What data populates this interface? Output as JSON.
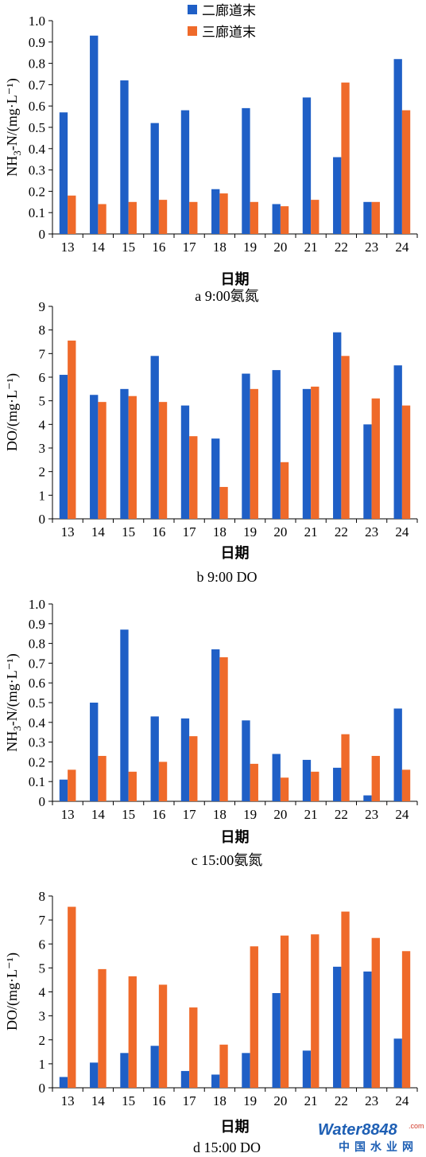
{
  "colors": {
    "series1": "#1f5fc6",
    "series2": "#ef6a2a",
    "axis": "#000000"
  },
  "legend": [
    {
      "label": "二廊道末",
      "color": "#1f5fc6"
    },
    {
      "label": "三廊道末",
      "color": "#ef6a2a"
    }
  ],
  "watermark": {
    "brand": "Water8848",
    "domain": ".com",
    "subtitle": "中国水业网"
  },
  "chart_data": [
    {
      "type": "bar",
      "caption": "a 9:00氨氮",
      "xlabel": "日期",
      "ylabel": "NH3-N/(mg·L⁻¹)",
      "ylim": [
        0,
        1.0
      ],
      "yticks": [
        "0",
        "0.1",
        "0.2",
        "0.3",
        "0.4",
        "0.5",
        "0.6",
        "0.7",
        "0.8",
        "0.9",
        "1.0"
      ],
      "categories": [
        "13",
        "14",
        "15",
        "16",
        "17",
        "18",
        "19",
        "20",
        "21",
        "22",
        "23",
        "24"
      ],
      "series": [
        {
          "name": "二廊道末",
          "values": [
            0.57,
            0.93,
            0.72,
            0.52,
            0.58,
            0.21,
            0.59,
            0.14,
            0.64,
            0.36,
            0.15,
            0.82
          ]
        },
        {
          "name": "三廊道末",
          "values": [
            0.18,
            0.14,
            0.15,
            0.16,
            0.15,
            0.19,
            0.15,
            0.13,
            0.16,
            0.71,
            0.15,
            0.58
          ]
        }
      ]
    },
    {
      "type": "bar",
      "caption": "b 9:00 DO",
      "xlabel": "日期",
      "ylabel": "DO/(mg·L⁻¹)",
      "ylim": [
        0,
        9
      ],
      "yticks": [
        "0",
        "1",
        "2",
        "3",
        "4",
        "5",
        "6",
        "7",
        "8",
        "9"
      ],
      "categories": [
        "13",
        "14",
        "15",
        "16",
        "17",
        "18",
        "19",
        "20",
        "21",
        "22",
        "23",
        "24"
      ],
      "series": [
        {
          "name": "二廊道末",
          "values": [
            6.1,
            5.25,
            5.5,
            6.9,
            4.8,
            3.4,
            6.15,
            6.3,
            5.5,
            7.9,
            4.0,
            6.5
          ]
        },
        {
          "name": "三廊道末",
          "values": [
            7.55,
            4.95,
            5.2,
            4.95,
            3.5,
            1.35,
            5.5,
            2.4,
            5.6,
            6.9,
            5.1,
            4.8
          ]
        }
      ]
    },
    {
      "type": "bar",
      "caption": "c 15:00氨氮",
      "xlabel": "日期",
      "ylabel": "NH3-N/(mg·L⁻¹)",
      "ylim": [
        0,
        1.0
      ],
      "yticks": [
        "0",
        "0.1",
        "0.2",
        "0.3",
        "0.4",
        "0.5",
        "0.6",
        "0.7",
        "0.8",
        "0.9",
        "1.0"
      ],
      "categories": [
        "13",
        "14",
        "15",
        "16",
        "17",
        "18",
        "19",
        "20",
        "21",
        "22",
        "23",
        "24"
      ],
      "series": [
        {
          "name": "二廊道末",
          "values": [
            0.11,
            0.5,
            0.87,
            0.43,
            0.42,
            0.77,
            0.41,
            0.24,
            0.21,
            0.17,
            0.03,
            0.47
          ]
        },
        {
          "name": "三廊道末",
          "values": [
            0.16,
            0.23,
            0.15,
            0.2,
            0.33,
            0.73,
            0.19,
            0.12,
            0.15,
            0.34,
            0.23,
            0.16
          ]
        }
      ]
    },
    {
      "type": "bar",
      "caption": "d 15:00 DO",
      "xlabel": "日期",
      "ylabel": "DO/(mg·L⁻¹)",
      "ylim": [
        0,
        8
      ],
      "yticks": [
        "0",
        "1",
        "2",
        "3",
        "4",
        "5",
        "6",
        "7",
        "8"
      ],
      "categories": [
        "13",
        "14",
        "15",
        "16",
        "17",
        "18",
        "19",
        "20",
        "21",
        "22",
        "23",
        "24"
      ],
      "series": [
        {
          "name": "二廊道末",
          "values": [
            0.45,
            1.05,
            1.45,
            1.75,
            0.7,
            0.55,
            1.45,
            3.95,
            1.55,
            5.05,
            4.85,
            2.05
          ]
        },
        {
          "name": "三廊道末",
          "values": [
            7.55,
            4.95,
            4.65,
            4.3,
            3.35,
            1.8,
            5.9,
            6.35,
            6.4,
            7.35,
            6.25,
            5.7
          ]
        }
      ]
    }
  ]
}
